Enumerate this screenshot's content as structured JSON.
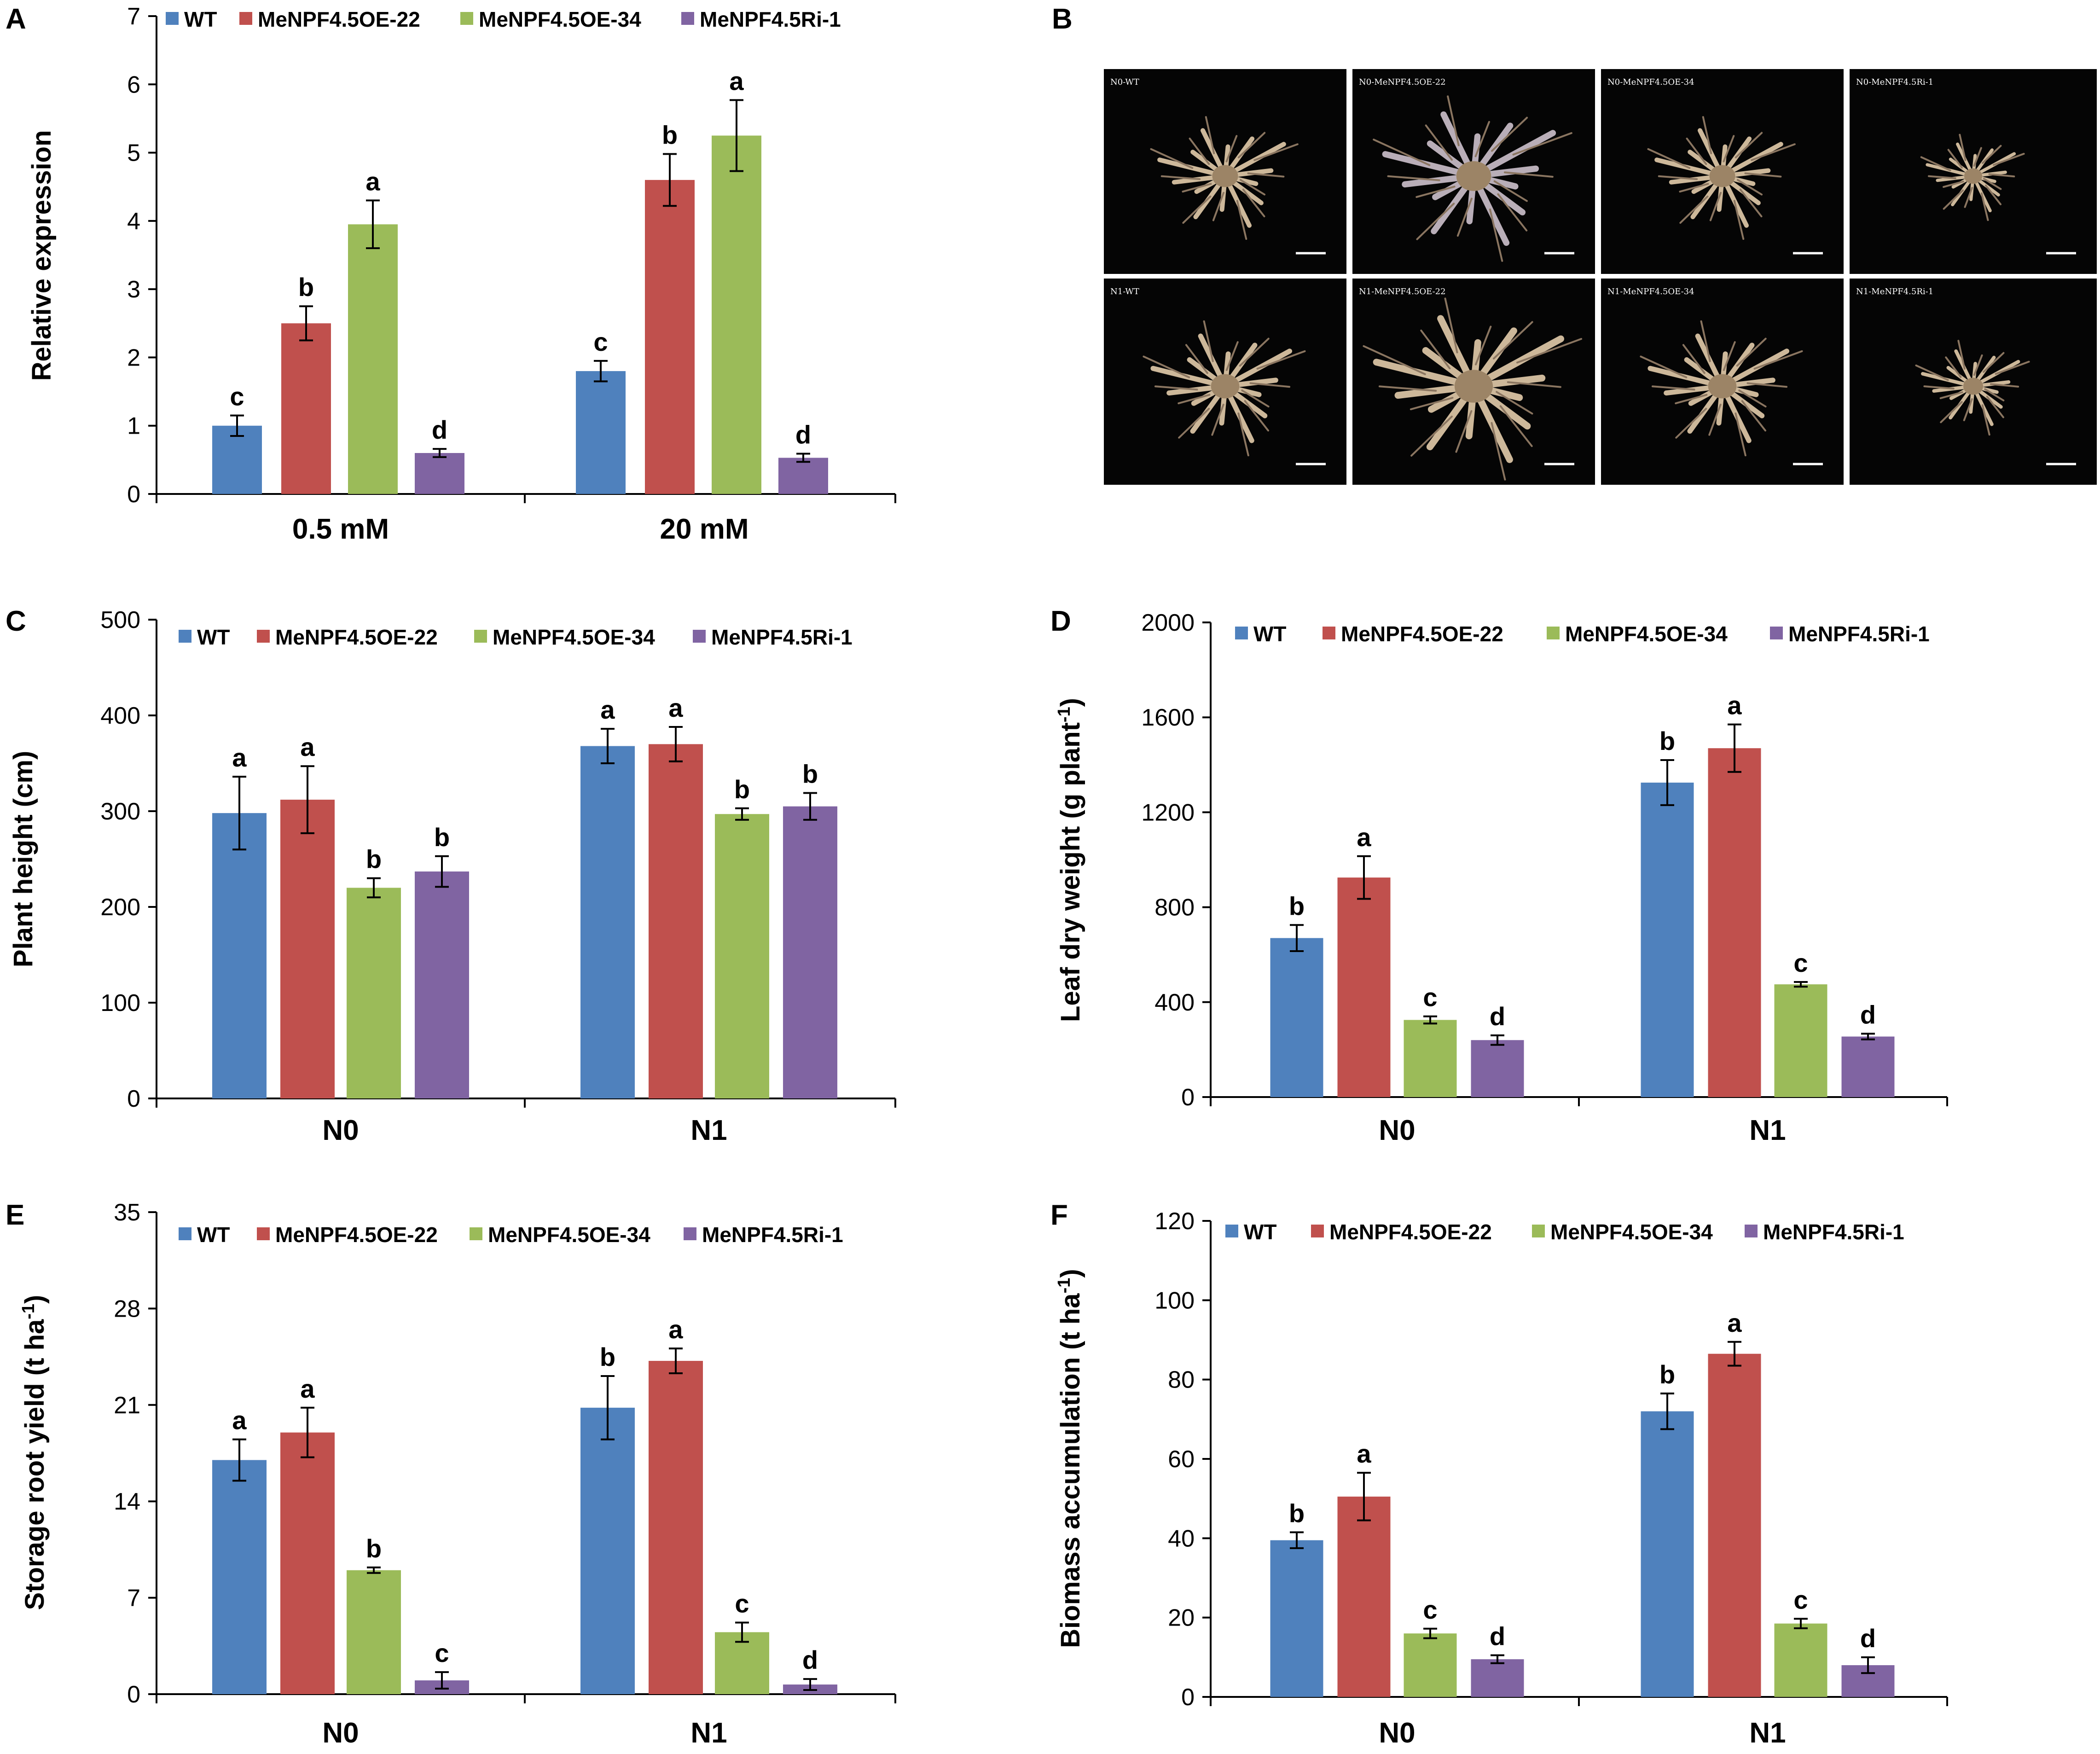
{
  "colors": {
    "WT": "#4f81bd",
    "OE22": "#c0504d",
    "OE34": "#9bbb59",
    "Ri1": "#8064a2"
  },
  "legend": [
    "WT",
    "MeNPF4.5OE-22",
    "MeNPF4.5OE-34",
    "MeNPF4.5Ri-1"
  ],
  "photos": {
    "panel": "B",
    "labels": [
      "N0-WT",
      "N0-MeNPF4.5OE-22",
      "N0-MeNPF4.5OE-34",
      "N0-MeNPF4.5Ri-1",
      "N1-WT",
      "N1-MeNPF4.5OE-22",
      "N1-MeNPF4.5OE-34",
      "N1-MeNPF4.5Ri-1"
    ]
  },
  "chart_data": [
    {
      "panel": "A",
      "type": "bar",
      "ylabel": "Relative expression",
      "ylim": [
        0,
        7
      ],
      "yticks": [
        "0",
        "1",
        "2",
        "3",
        "4",
        "5",
        "6",
        "7"
      ],
      "categories": [
        "0.5 mM",
        "20 mM"
      ],
      "series": [
        {
          "name": "WT",
          "values": [
            1.0,
            1.8
          ],
          "errors": [
            0.15,
            0.15
          ],
          "letters": [
            "c",
            "c"
          ]
        },
        {
          "name": "MeNPF4.5OE-22",
          "values": [
            2.5,
            4.6
          ],
          "errors": [
            0.25,
            0.38
          ],
          "letters": [
            "b",
            "b"
          ]
        },
        {
          "name": "MeNPF4.5OE-34",
          "values": [
            3.95,
            5.25
          ],
          "errors": [
            0.35,
            0.52
          ],
          "letters": [
            "a",
            "a"
          ]
        },
        {
          "name": "MeNPF4.5Ri-1",
          "values": [
            0.6,
            0.53
          ],
          "errors": [
            0.06,
            0.06
          ],
          "letters": [
            "d",
            "d"
          ]
        }
      ]
    },
    {
      "panel": "C",
      "type": "bar",
      "ylabel": "Plant height (cm)",
      "ylim": [
        0,
        500
      ],
      "yticks": [
        "0",
        "100",
        "200",
        "300",
        "400",
        "500"
      ],
      "categories": [
        "N0",
        "N1"
      ],
      "series": [
        {
          "name": "WT",
          "values": [
            298,
            368
          ],
          "errors": [
            38,
            18
          ],
          "letters": [
            "a",
            "a"
          ]
        },
        {
          "name": "MeNPF4.5OE-22",
          "values": [
            312,
            370
          ],
          "errors": [
            35,
            18
          ],
          "letters": [
            "a",
            "a"
          ]
        },
        {
          "name": "MeNPF4.5OE-34",
          "values": [
            220,
            297
          ],
          "errors": [
            10,
            6
          ],
          "letters": [
            "b",
            "b"
          ]
        },
        {
          "name": "MeNPF4.5Ri-1",
          "values": [
            237,
            305
          ],
          "errors": [
            16,
            14
          ],
          "letters": [
            "b",
            "b"
          ]
        }
      ]
    },
    {
      "panel": "D",
      "type": "bar",
      "ylabel": "Leaf dry weight (g plant",
      "ylabel_sup": "-1",
      "ylabel_end": ")",
      "ylim": [
        0,
        2000
      ],
      "yticks": [
        "0",
        "400",
        "800",
        "1200",
        "1600",
        "2000"
      ],
      "categories": [
        "N0",
        "N1"
      ],
      "series": [
        {
          "name": "WT",
          "values": [
            670,
            1325
          ],
          "errors": [
            55,
            95
          ],
          "letters": [
            "b",
            "b"
          ]
        },
        {
          "name": "MeNPF4.5OE-22",
          "values": [
            925,
            1470
          ],
          "errors": [
            90,
            100
          ],
          "letters": [
            "a",
            "a"
          ]
        },
        {
          "name": "MeNPF4.5OE-34",
          "values": [
            325,
            475
          ],
          "errors": [
            15,
            10
          ],
          "letters": [
            "c",
            "c"
          ]
        },
        {
          "name": "MeNPF4.5Ri-1",
          "values": [
            240,
            255
          ],
          "errors": [
            20,
            12
          ],
          "letters": [
            "d",
            "d"
          ]
        }
      ]
    },
    {
      "panel": "E",
      "type": "bar",
      "ylabel": "Storage root yield (t ha",
      "ylabel_sup": "-1",
      "ylabel_end": ")",
      "ylim": [
        0,
        35
      ],
      "yticks": [
        "0",
        "7",
        "14",
        "21",
        "28",
        "35"
      ],
      "categories": [
        "N0",
        "N1"
      ],
      "series": [
        {
          "name": "WT",
          "values": [
            17.0,
            20.8
          ],
          "errors": [
            1.5,
            2.3
          ],
          "letters": [
            "a",
            "b"
          ]
        },
        {
          "name": "MeNPF4.5OE-22",
          "values": [
            19.0,
            24.2
          ],
          "errors": [
            1.8,
            0.9
          ],
          "letters": [
            "a",
            "a"
          ]
        },
        {
          "name": "MeNPF4.5OE-34",
          "values": [
            9.0,
            4.5
          ],
          "errors": [
            0.2,
            0.7
          ],
          "letters": [
            "b",
            "c"
          ]
        },
        {
          "name": "MeNPF4.5Ri-1",
          "values": [
            1.0,
            0.7
          ],
          "errors": [
            0.6,
            0.4
          ],
          "letters": [
            "c",
            "d"
          ]
        }
      ]
    },
    {
      "panel": "F",
      "type": "bar",
      "ylabel": "Biomass accumulation (t ha",
      "ylabel_sup": "-1",
      "ylabel_end": ")",
      "ylim": [
        0,
        120
      ],
      "yticks": [
        "0",
        "20",
        "40",
        "60",
        "80",
        "100",
        "120"
      ],
      "categories": [
        "N0",
        "N1"
      ],
      "series": [
        {
          "name": "WT",
          "values": [
            39.5,
            72.0
          ],
          "errors": [
            2.0,
            4.5
          ],
          "letters": [
            "b",
            "b"
          ]
        },
        {
          "name": "MeNPF4.5OE-22",
          "values": [
            50.5,
            86.5
          ],
          "errors": [
            6.0,
            3.0
          ],
          "letters": [
            "a",
            "a"
          ]
        },
        {
          "name": "MeNPF4.5OE-34",
          "values": [
            16.0,
            18.5
          ],
          "errors": [
            1.2,
            1.2
          ],
          "letters": [
            "c",
            "c"
          ]
        },
        {
          "name": "MeNPF4.5Ri-1",
          "values": [
            9.5,
            8.0
          ],
          "errors": [
            1.0,
            2.0
          ],
          "letters": [
            "d",
            "d"
          ]
        }
      ]
    }
  ]
}
